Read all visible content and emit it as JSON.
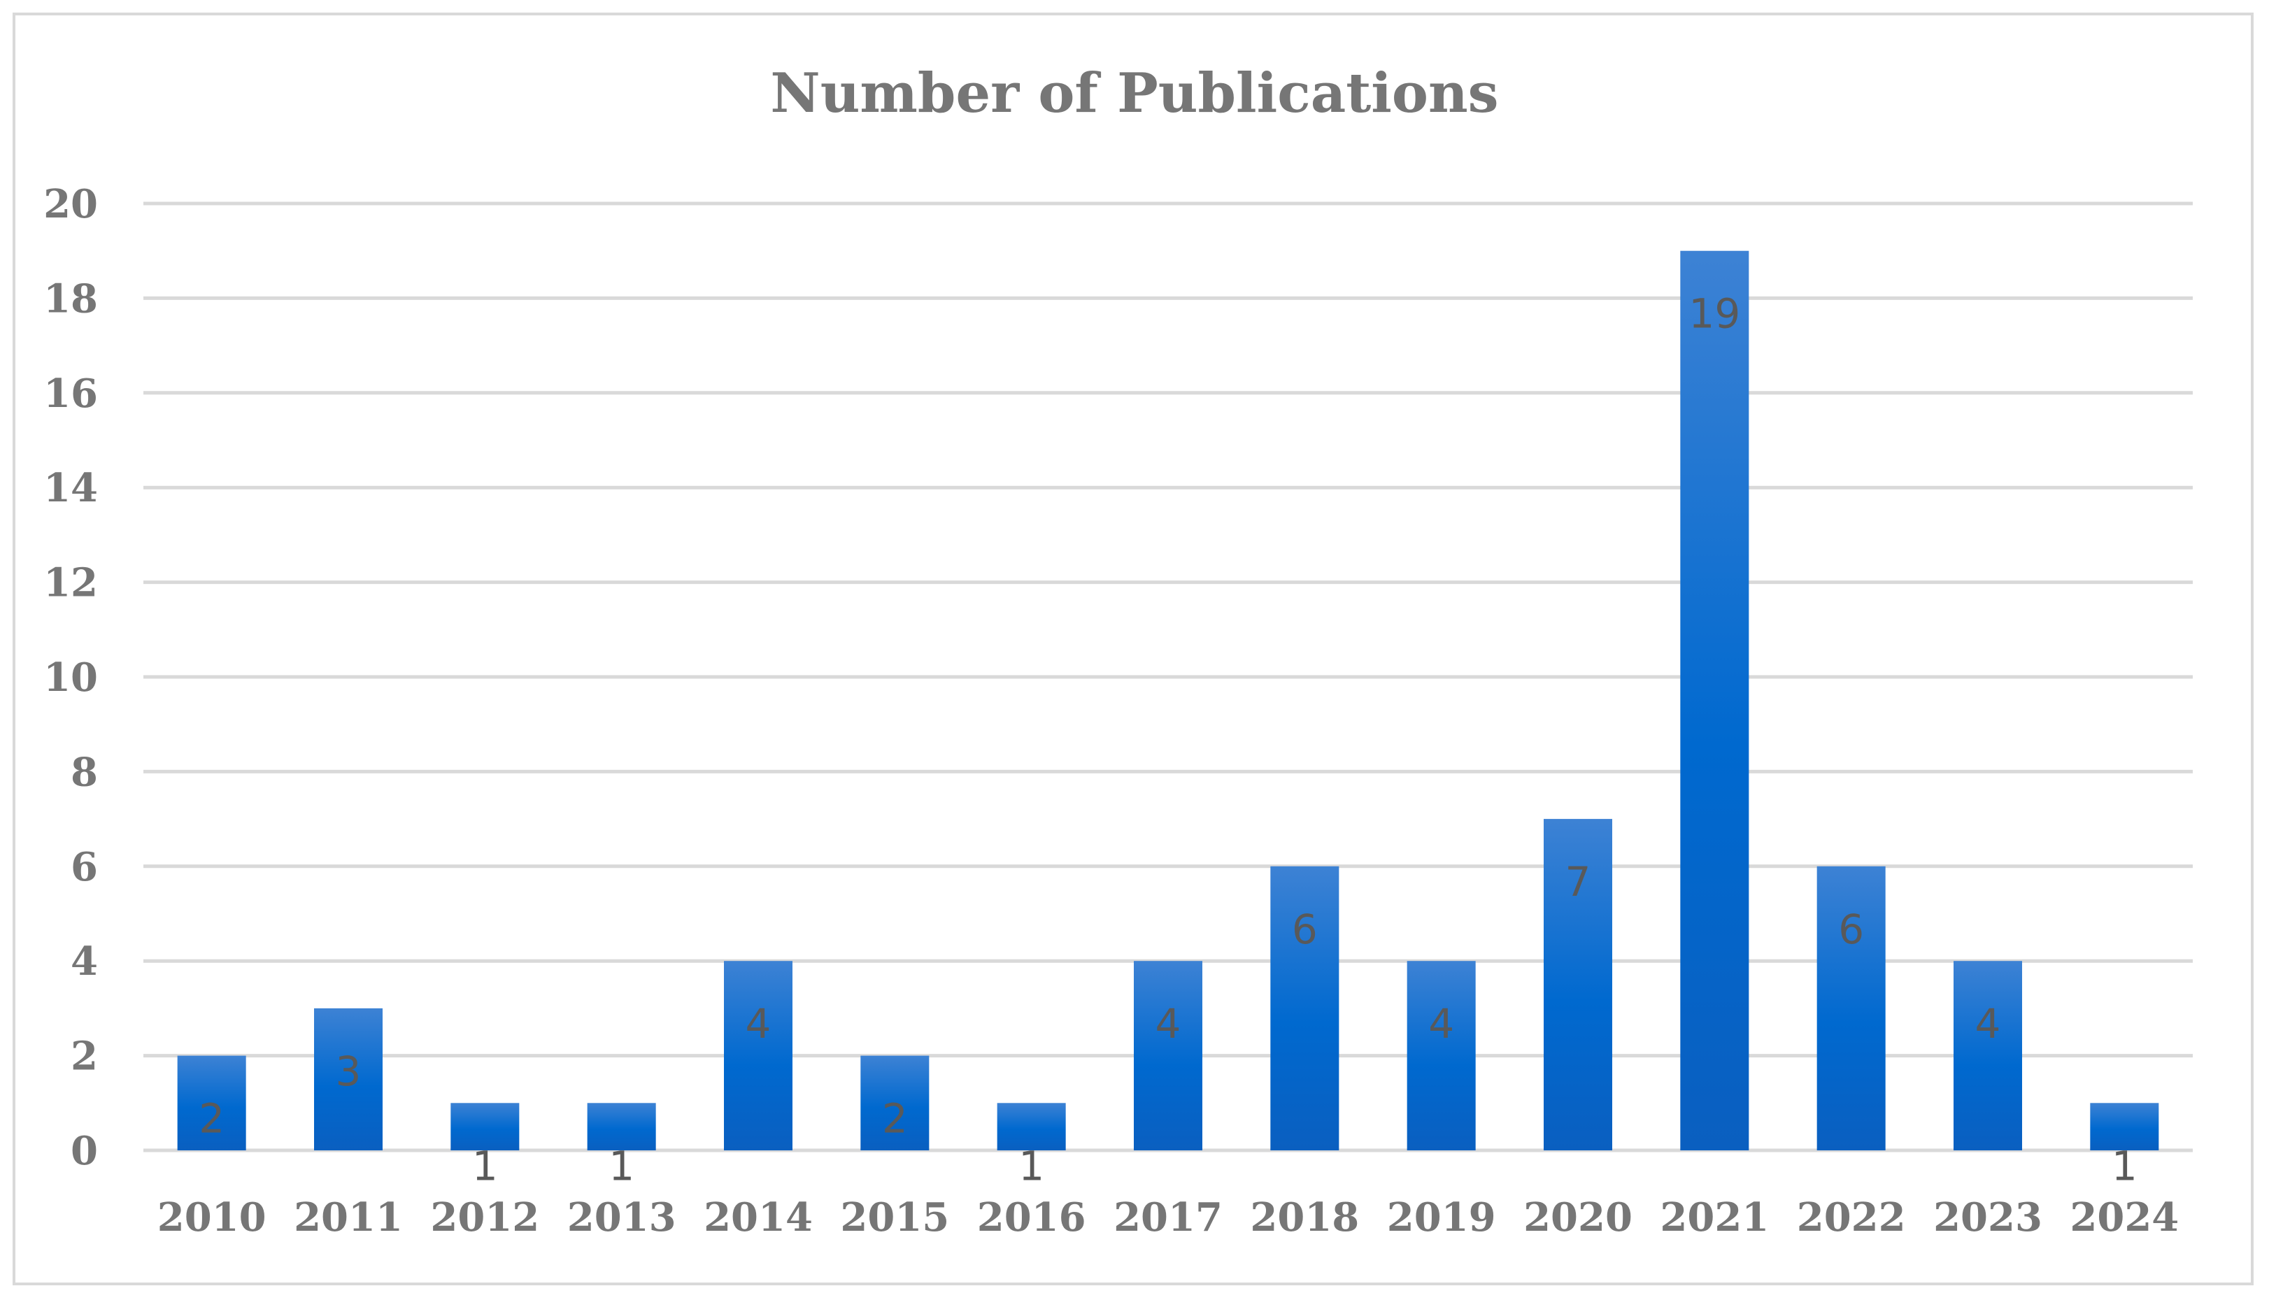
{
  "chart_data": {
    "type": "bar",
    "title": "Number of Publications",
    "xlabel": "",
    "ylabel": "",
    "categories": [
      "2010",
      "2011",
      "2012",
      "2013",
      "2014",
      "2015",
      "2016",
      "2017",
      "2018",
      "2019",
      "2020",
      "2021",
      "2022",
      "2023",
      "2024"
    ],
    "values": [
      2,
      3,
      1,
      1,
      4,
      2,
      1,
      4,
      6,
      4,
      7,
      19,
      6,
      4,
      1
    ],
    "ylim": [
      0,
      20
    ],
    "yticks": [
      0,
      2,
      4,
      6,
      8,
      10,
      12,
      14,
      16,
      18,
      20
    ],
    "grid": true,
    "legend": "none",
    "data_labels": true,
    "bar_color": "#0a6fd6",
    "bar_gradient": [
      "#3d82d4",
      "#0069cf",
      "#0a5fc0"
    ]
  }
}
